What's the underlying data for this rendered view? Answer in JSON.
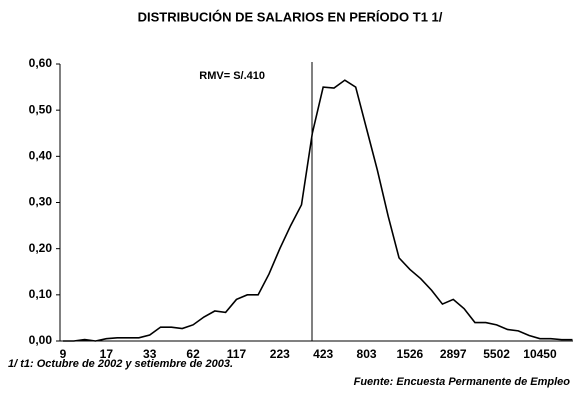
{
  "chart_data": {
    "type": "line",
    "title": "DISTRIBUCIÓN DE SALARIOS EN PERÍODO T1 1/",
    "annotations": [
      "RMV= S/.410"
    ],
    "notes": [
      "1/ t1: Octubre de 2002 y setiembre de 2003.",
      "Fuente: Encuesta Permanente de Empleo"
    ],
    "categories": [
      "9",
      null,
      null,
      null,
      "17",
      null,
      null,
      null,
      "33",
      null,
      null,
      null,
      "62",
      null,
      null,
      null,
      "117",
      null,
      null,
      null,
      "223",
      null,
      null,
      null,
      "423",
      null,
      null,
      null,
      "803",
      null,
      null,
      null,
      "1526",
      null,
      null,
      null,
      "2897",
      null,
      null,
      null,
      "5502",
      null,
      null,
      null,
      "10450",
      null,
      null,
      null
    ],
    "values": [
      0.0,
      0.0,
      0.003,
      0.0,
      0.005,
      0.007,
      0.007,
      0.007,
      0.013,
      0.03,
      0.03,
      0.027,
      0.035,
      0.052,
      0.065,
      0.062,
      0.09,
      0.1,
      0.1,
      0.145,
      0.2,
      0.25,
      0.295,
      0.45,
      0.55,
      0.548,
      0.565,
      0.55,
      0.46,
      0.37,
      0.27,
      0.18,
      0.155,
      0.135,
      0.11,
      0.08,
      0.09,
      0.07,
      0.04,
      0.04,
      0.035,
      0.025,
      0.022,
      0.012,
      0.005,
      0.005,
      0.003,
      0.003
    ],
    "color": "#000000",
    "ylim": [
      0,
      0.6
    ],
    "yticks": [
      {
        "value": 0,
        "label": "0,00"
      },
      {
        "value": 0.1,
        "label": "0,10"
      },
      {
        "value": 0.2,
        "label": "0,20"
      },
      {
        "value": 0.3,
        "label": "0,30"
      },
      {
        "value": 0.4,
        "label": "0,40"
      },
      {
        "value": 0.5,
        "label": "0,50"
      },
      {
        "value": 0.6,
        "label": "0,60"
      }
    ],
    "grid": false
  }
}
